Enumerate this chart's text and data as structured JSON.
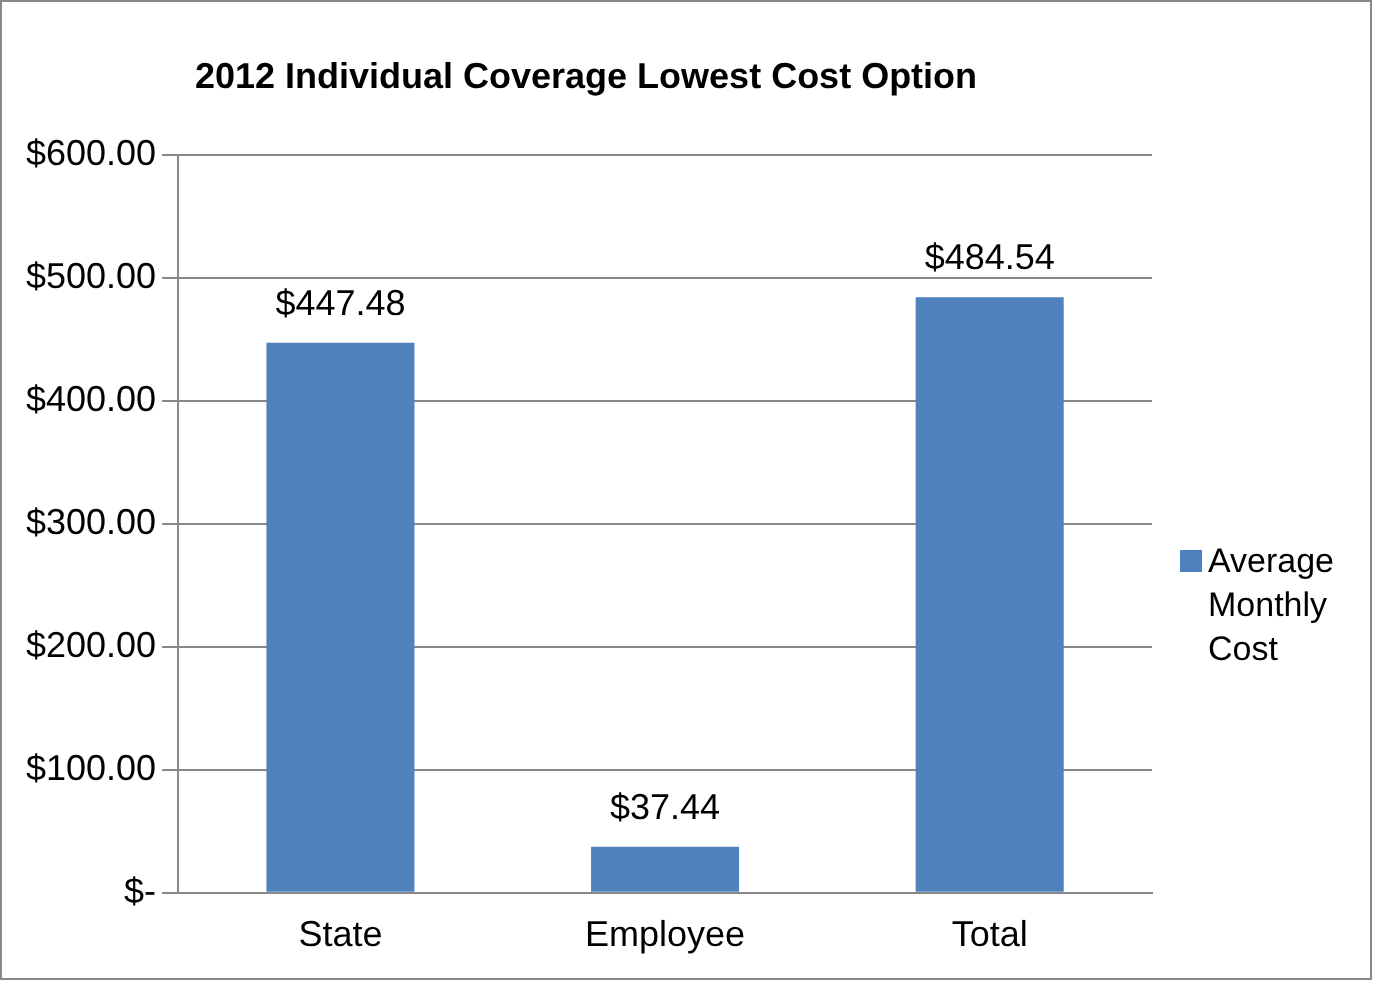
{
  "chart_data": {
    "type": "bar",
    "title": "2012 Individual Coverage Lowest Cost Option",
    "categories": [
      "State",
      "Employee",
      "Total"
    ],
    "series": [
      {
        "name": "Average Monthly Cost",
        "color": "#4f81bd",
        "values": [
          447.48,
          37.44,
          484.54
        ],
        "value_labels": [
          "$447.48",
          "$37.44",
          "$484.54"
        ]
      }
    ],
    "ylim": [
      0,
      600
    ],
    "yticks": [
      {
        "value": 0,
        "label": "$-"
      },
      {
        "value": 100,
        "label": "$100.00"
      },
      {
        "value": 200,
        "label": "$200.00"
      },
      {
        "value": 300,
        "label": "$300.00"
      },
      {
        "value": 400,
        "label": "$400.00"
      },
      {
        "value": 500,
        "label": "$500.00"
      },
      {
        "value": 600,
        "label": "$600.00"
      }
    ],
    "grid": "y",
    "legend": "right"
  }
}
